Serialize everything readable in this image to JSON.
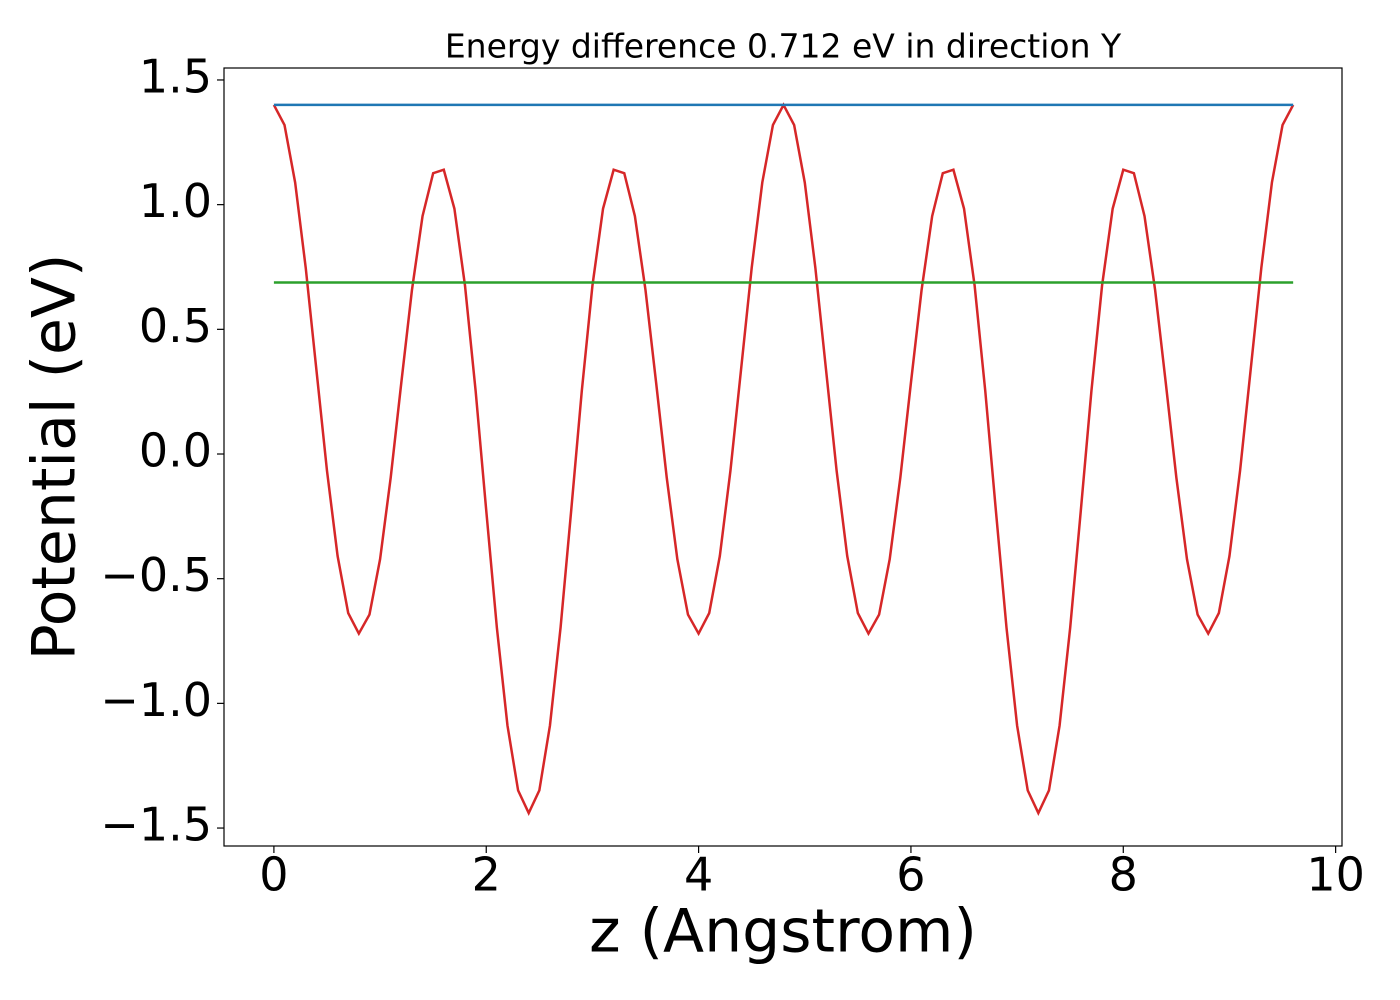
{
  "chart_data": {
    "type": "line",
    "title": "Energy difference 0.712 eV in direction Y",
    "xlabel": "z (Angstrom)",
    "ylabel": "Potential (eV)",
    "xlim": [
      -0.47,
      10.06
    ],
    "ylim": [
      -1.572,
      1.548
    ],
    "xticks": [
      0,
      2,
      4,
      6,
      8,
      10
    ],
    "yticks": [
      {
        "value": -1.5,
        "label": "−1.5"
      },
      {
        "value": -1.0,
        "label": "−1.0"
      },
      {
        "value": -0.5,
        "label": "−0.5"
      },
      {
        "value": 0,
        "label": "0.0"
      },
      0.5,
      {
        "value": 1.0,
        "label": "1.0"
      },
      1.5
    ],
    "series": [
      {
        "color": "#d62728",
        "x": [
          0,
          0.1,
          0.2,
          0.3,
          0.4,
          0.5,
          0.6,
          0.7,
          0.8,
          0.9,
          1.0,
          1.1,
          1.2,
          1.3,
          1.4,
          1.5,
          1.6,
          1.7,
          1.8,
          1.9,
          2.0,
          2.1,
          2.2,
          2.3,
          2.4,
          2.5,
          2.6,
          2.7,
          2.8,
          2.9,
          3.0,
          3.1,
          3.2,
          3.3,
          3.4,
          3.5,
          3.6,
          3.7,
          3.8,
          3.9,
          4.0,
          4.1,
          4.2,
          4.3,
          4.4,
          4.5,
          4.6,
          4.7,
          4.8,
          4.9,
          5.0,
          5.1,
          5.2,
          5.3,
          5.4,
          5.5,
          5.6,
          5.7,
          5.8,
          5.9,
          6.0,
          6.1,
          6.2,
          6.3,
          6.4,
          6.5,
          6.6,
          6.7,
          6.8,
          6.9,
          7.0,
          7.1,
          7.2,
          7.3,
          7.4,
          7.5,
          7.6,
          7.7,
          7.8,
          7.9,
          8.0,
          8.1,
          8.2,
          8.3,
          8.4,
          8.5,
          8.6,
          8.7,
          8.8,
          8.9,
          9.0,
          9.1,
          9.2,
          9.3,
          9.4,
          9.5,
          9.6
        ],
        "values": [
          1.4,
          1.319,
          1.089,
          0.746,
          0.339,
          -0.067,
          -0.409,
          -0.638,
          -0.72,
          -0.644,
          -0.422,
          -0.095,
          0.286,
          0.657,
          0.954,
          1.126,
          1.14,
          0.984,
          0.675,
          0.253,
          -0.227,
          -0.696,
          -1.089,
          -1.349,
          -1.44,
          -1.349,
          -1.089,
          -0.696,
          -0.227,
          0.253,
          0.675,
          0.984,
          1.14,
          1.126,
          0.954,
          0.657,
          0.286,
          -0.095,
          -0.422,
          -0.644,
          -0.72,
          -0.638,
          -0.409,
          -0.067,
          0.339,
          0.746,
          1.089,
          1.319,
          1.4,
          1.319,
          1.089,
          0.746,
          0.339,
          -0.067,
          -0.409,
          -0.638,
          -0.72,
          -0.644,
          -0.422,
          -0.095,
          0.286,
          0.657,
          0.954,
          1.126,
          1.14,
          0.984,
          0.675,
          0.253,
          -0.227,
          -0.696,
          -1.089,
          -1.349,
          -1.44,
          -1.349,
          -1.089,
          -0.696,
          -0.227,
          0.253,
          0.675,
          0.984,
          1.14,
          1.126,
          0.954,
          0.657,
          0.286,
          -0.095,
          -0.422,
          -0.644,
          -0.72,
          -0.638,
          -0.409,
          -0.067,
          0.339,
          0.746,
          1.089,
          1.319,
          1.4
        ]
      },
      {
        "color": "#1f77b4",
        "x": [
          0,
          9.6
        ],
        "values": [
          1.4,
          1.4
        ]
      },
      {
        "color": "#2ca02c",
        "x": [
          0,
          9.6
        ],
        "values": [
          0.688,
          0.688
        ]
      }
    ]
  }
}
